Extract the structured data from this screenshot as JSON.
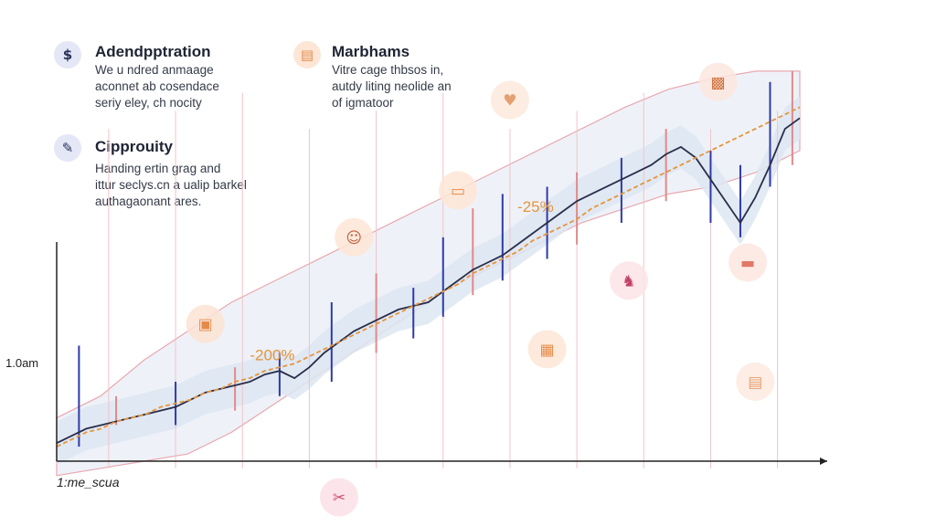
{
  "colors": {
    "candle_up": "#2f3aa8",
    "candle_down": "#e08a8a",
    "price_line": "#2a2e4a",
    "ma_line": "#e6953a",
    "band_outer_fill": "#eef2f8",
    "band_outer_stroke": "#e8a8b0",
    "band_inner_fill": "#dde6f2",
    "gridline": "#f1c3c8",
    "axis": "#222222",
    "annotation": "#e6953a"
  },
  "legend": [
    {
      "icon": "dollar-icon",
      "glyph": "$",
      "icon_bg": "#e4e7f5",
      "icon_fg": "#27305c",
      "title": "Adendpptration",
      "lines": [
        "We u ndred anmaage",
        "aconnet ab cosendace",
        "seriy eley, ch nocity"
      ]
    },
    {
      "icon": "box-icon",
      "glyph": "▤",
      "icon_bg": "#fde6d6",
      "icon_fg": "#e58b4a",
      "title": "Marbhams",
      "lines": [
        "Vitre cage thbsos in,",
        "autdy liting neolide an",
        "of igmatoor"
      ]
    },
    {
      "icon": "chat-icon",
      "glyph": "✎",
      "icon_bg": "#e4e7f5",
      "icon_fg": "#27305c",
      "title": "Cipprouity",
      "lines": [
        "Handing ertin grag and",
        "ittur seclys.cn a ualip barkel",
        "authagaonant ares."
      ]
    }
  ],
  "chart_data": {
    "type": "line",
    "xlabel": "1:me_scua",
    "ylabel": "1.0am",
    "annotations": [
      {
        "text": "-200%",
        "x": 26,
        "y": 0.28
      },
      {
        "text": "-25%",
        "x": 62,
        "y": 0.69
      }
    ],
    "x": [
      0,
      2,
      4,
      6,
      8,
      10,
      12,
      14,
      16,
      18,
      20,
      22,
      24,
      26,
      28,
      30,
      32,
      34,
      36,
      38,
      40,
      42,
      44,
      46,
      48,
      50,
      52,
      54,
      56,
      58,
      60,
      62,
      64,
      66,
      68,
      70,
      72,
      74,
      76,
      78,
      80,
      82,
      84,
      86,
      88,
      90,
      92,
      94,
      96,
      98,
      100
    ],
    "series": [
      {
        "values": [
          0.05,
          0.07,
          0.09,
          0.1,
          0.11,
          0.12,
          0.13,
          0.14,
          0.15,
          0.17,
          0.19,
          0.2,
          0.21,
          0.22,
          0.24,
          0.25,
          0.23,
          0.26,
          0.3,
          0.33,
          0.36,
          0.38,
          0.4,
          0.42,
          0.43,
          0.44,
          0.47,
          0.5,
          0.53,
          0.55,
          0.57,
          0.6,
          0.63,
          0.66,
          0.69,
          0.72,
          0.74,
          0.76,
          0.78,
          0.8,
          0.82,
          0.85,
          0.87,
          0.84,
          0.78,
          0.72,
          0.66,
          0.73,
          0.82,
          0.92,
          0.95
        ]
      },
      {
        "values": [
          0.04,
          0.06,
          0.08,
          0.09,
          0.11,
          0.12,
          0.13,
          0.15,
          0.16,
          0.17,
          0.19,
          0.2,
          0.22,
          0.23,
          0.25,
          0.26,
          0.27,
          0.29,
          0.31,
          0.33,
          0.35,
          0.37,
          0.39,
          0.41,
          0.43,
          0.45,
          0.47,
          0.49,
          0.52,
          0.54,
          0.56,
          0.58,
          0.61,
          0.63,
          0.65,
          0.67,
          0.7,
          0.72,
          0.74,
          0.76,
          0.78,
          0.8,
          0.82,
          0.84,
          0.86,
          0.88,
          0.9,
          0.92,
          0.94,
          0.96,
          0.98
        ]
      }
    ],
    "candles": [
      {
        "x": 3,
        "lo": 0.04,
        "hi": 0.32,
        "up": true
      },
      {
        "x": 8,
        "lo": 0.1,
        "hi": 0.18,
        "up": false
      },
      {
        "x": 16,
        "lo": 0.1,
        "hi": 0.22,
        "up": true
      },
      {
        "x": 24,
        "lo": 0.14,
        "hi": 0.26,
        "up": false
      },
      {
        "x": 30,
        "lo": 0.18,
        "hi": 0.3,
        "up": true
      },
      {
        "x": 37,
        "lo": 0.22,
        "hi": 0.44,
        "up": true
      },
      {
        "x": 43,
        "lo": 0.3,
        "hi": 0.52,
        "up": false
      },
      {
        "x": 48,
        "lo": 0.34,
        "hi": 0.48,
        "up": true
      },
      {
        "x": 52,
        "lo": 0.4,
        "hi": 0.62,
        "up": true
      },
      {
        "x": 56,
        "lo": 0.46,
        "hi": 0.7,
        "up": false
      },
      {
        "x": 60,
        "lo": 0.5,
        "hi": 0.74,
        "up": true
      },
      {
        "x": 66,
        "lo": 0.56,
        "hi": 0.76,
        "up": true
      },
      {
        "x": 70,
        "lo": 0.6,
        "hi": 0.8,
        "up": false
      },
      {
        "x": 76,
        "lo": 0.66,
        "hi": 0.84,
        "up": true
      },
      {
        "x": 82,
        "lo": 0.72,
        "hi": 0.92,
        "up": false
      },
      {
        "x": 88,
        "lo": 0.66,
        "hi": 0.86,
        "up": true
      },
      {
        "x": 92,
        "lo": 0.62,
        "hi": 0.82,
        "up": true
      },
      {
        "x": 96,
        "lo": 0.76,
        "hi": 1.05,
        "up": true
      },
      {
        "x": 99,
        "lo": 0.82,
        "hi": 1.08,
        "up": false
      }
    ],
    "band_outer_upper": [
      0.12,
      0.18,
      0.28,
      0.36,
      0.44,
      0.5,
      0.56,
      0.62,
      0.68,
      0.74,
      0.8,
      0.86,
      0.92,
      0.98,
      1.03,
      1.06,
      1.08,
      1.08
    ],
    "band_outer_lower": [
      -0.04,
      -0.02,
      0.0,
      0.02,
      0.08,
      0.16,
      0.24,
      0.32,
      0.4,
      0.48,
      0.54,
      0.6,
      0.66,
      0.7,
      0.74,
      0.76,
      0.8,
      0.86
    ],
    "gridlines_x": [
      7,
      16,
      25,
      34,
      43,
      52,
      61,
      70,
      79,
      88,
      97
    ],
    "xlim": [
      0,
      100
    ],
    "ylim": [
      0,
      1.1
    ],
    "floating_icons": [
      {
        "name": "cube-icon-1",
        "glyph": "▣",
        "x": 20,
        "y": 0.38,
        "bg": "#fbe3d4",
        "fg": "#e58b4a"
      },
      {
        "name": "person-icon",
        "glyph": "☺",
        "x": 40,
        "y": 0.62,
        "bg": "#fde6d6",
        "fg": "#c06040"
      },
      {
        "name": "wallet-icon",
        "glyph": "▭",
        "x": 54,
        "y": 0.75,
        "bg": "#fde6d6",
        "fg": "#e58b4a"
      },
      {
        "name": "cup-icon",
        "glyph": "♥",
        "x": 61,
        "y": 1.0,
        "bg": "#fde9dc",
        "fg": "#e5a070"
      },
      {
        "name": "cube-icon-2",
        "glyph": "▦",
        "x": 66,
        "y": 0.31,
        "bg": "#fde6d6",
        "fg": "#e58b4a"
      },
      {
        "name": "user-icon",
        "glyph": "♞",
        "x": 77,
        "y": 0.5,
        "bg": "#fbe3e6",
        "fg": "#c0406a"
      },
      {
        "name": "chest-icon",
        "glyph": "▩",
        "x": 89,
        "y": 1.05,
        "bg": "#fbe6df",
        "fg": "#d0703a"
      },
      {
        "name": "sofa-icon",
        "glyph": "▬",
        "x": 93,
        "y": 0.55,
        "bg": "#fde6e0",
        "fg": "#e07868"
      },
      {
        "name": "document-icon",
        "glyph": "▤",
        "x": 94,
        "y": 0.22,
        "bg": "#fdeadf",
        "fg": "#e5a070"
      },
      {
        "name": "cursor-icon",
        "glyph": "✂",
        "x": 38,
        "y": -0.1,
        "bg": "#fbe0e6",
        "fg": "#d05070"
      }
    ]
  }
}
